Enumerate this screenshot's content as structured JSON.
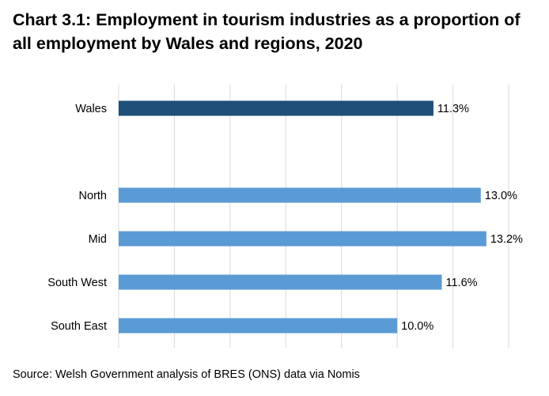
{
  "chart_data": {
    "type": "bar",
    "orientation": "horizontal",
    "title": "Chart 3.1: Employment in tourism industries as a proportion of all employment by Wales and regions, 2020",
    "source": "Source: Welsh Government analysis of BRES (ONS) data via Nomis",
    "categories": [
      "Wales",
      "North",
      "Mid",
      "South West",
      "South East"
    ],
    "values": [
      11.3,
      13.0,
      13.2,
      11.6,
      10.0
    ],
    "data_labels": [
      "11.3%",
      "13.0%",
      "13.2%",
      "11.6%",
      "10.0%"
    ],
    "unit": "%",
    "xlim": [
      0,
      14
    ],
    "grid": true,
    "tick_labels_shown": false,
    "legend": "none",
    "colors": {
      "Wales": "#1f4e79",
      "regions": "#5b9bd5",
      "gridline": "#d9d9d9"
    }
  }
}
